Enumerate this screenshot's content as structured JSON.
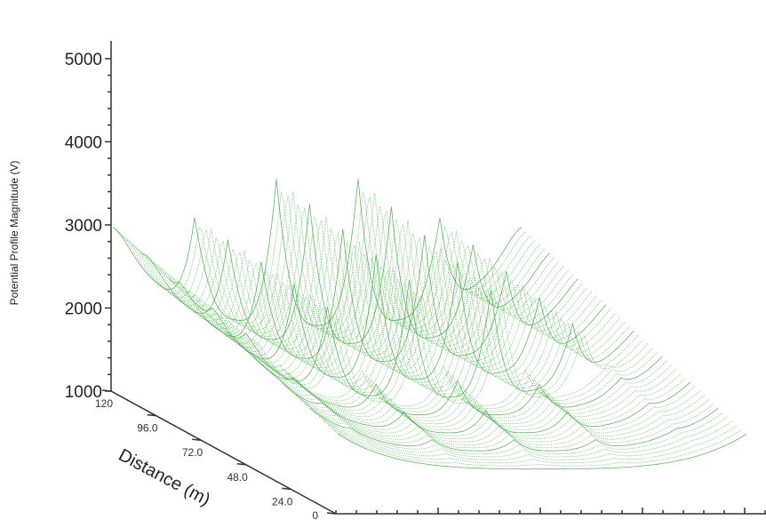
{
  "chart_data": {
    "type": "surface",
    "title": "",
    "zlabel": "Potential Profile Magnitude (V)",
    "ylabel": "Distance (m)",
    "xlabel": "",
    "zlim": [
      1000,
      5000
    ],
    "z_ticks": [
      "1000",
      "2000",
      "3000",
      "4000",
      "5000"
    ],
    "distance_ticks": [
      "0",
      "24.0",
      "48.0",
      "72.0",
      "96.0",
      "120"
    ],
    "distance_range": [
      0,
      120
    ],
    "surface": {
      "min_value": 1200,
      "max_value": 4300,
      "peaks_per_row": 5,
      "color": "#3aa63a"
    },
    "grid": false
  }
}
